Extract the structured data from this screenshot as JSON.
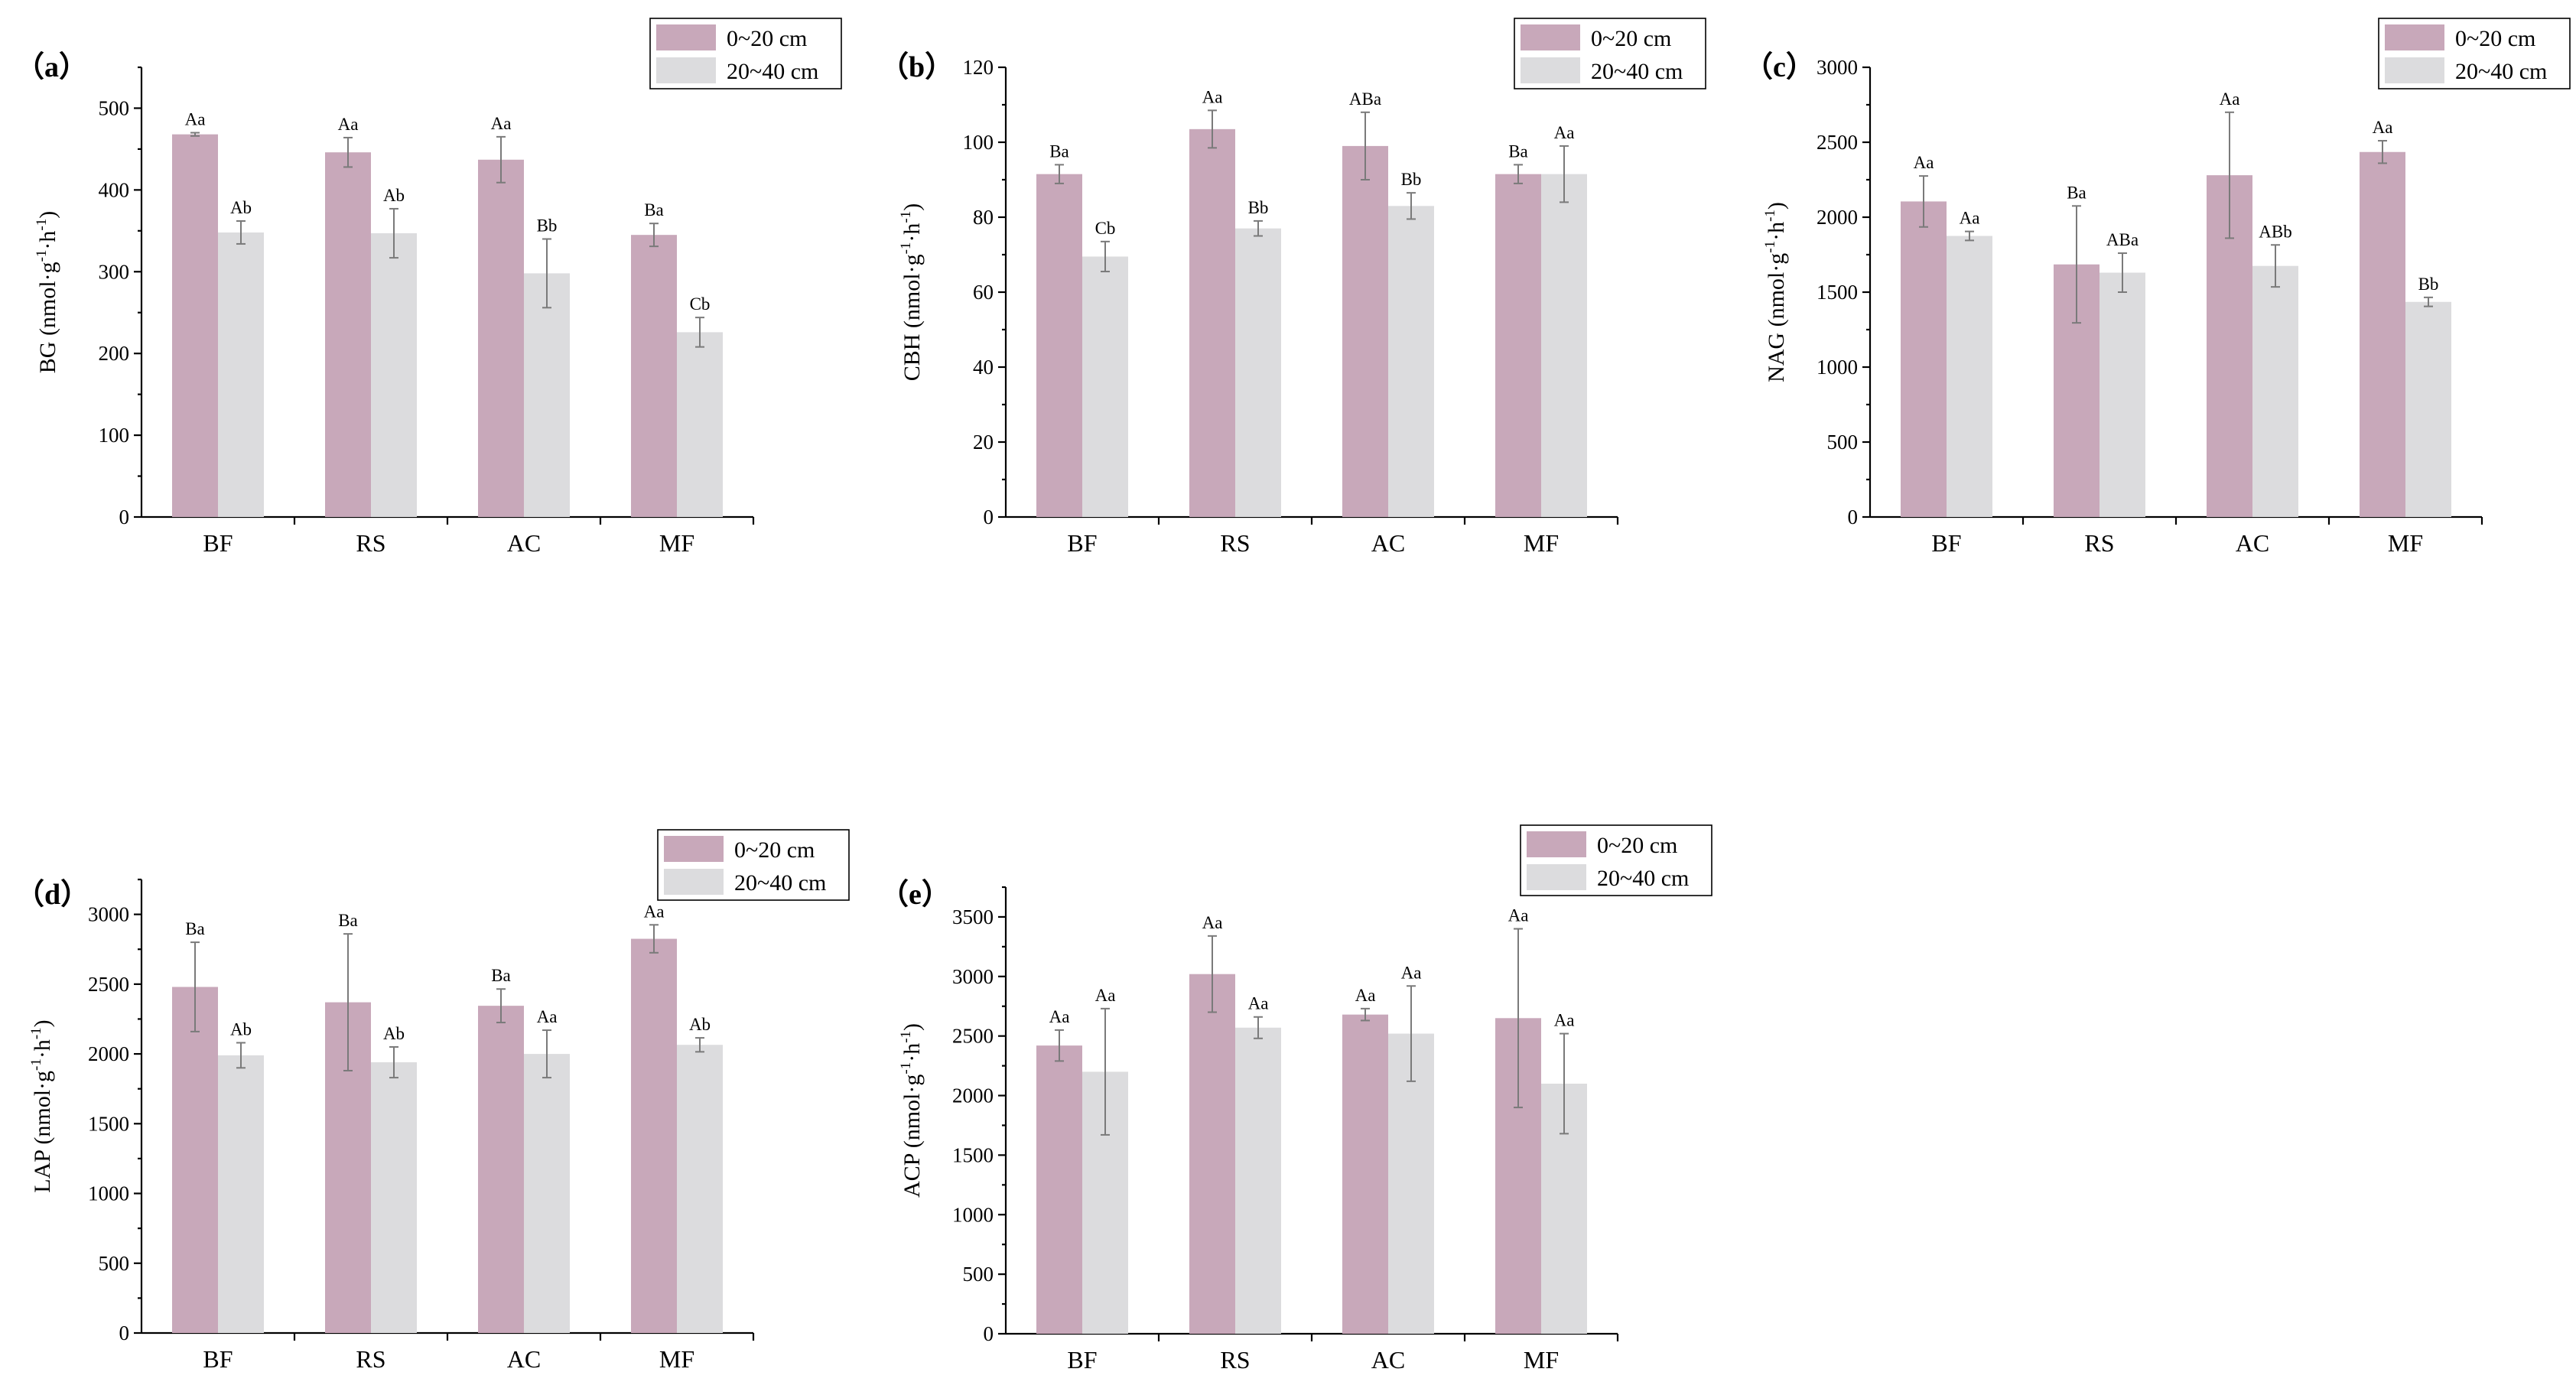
{
  "colors": {
    "series1": "#c8a8ba",
    "series2": "#dcdcde",
    "error_bar": "#7a7a7a"
  },
  "legend": [
    "0~20 cm",
    "20~40 cm"
  ],
  "chart_data": [
    {
      "id": "a",
      "type": "bar",
      "panel_label": "（a）",
      "ylabel": "BG (nmol·g-1·h-1)",
      "ylabel_main": "BG (nmol·g",
      "ylabel_tail": "·h",
      "ylabel_close": ")",
      "ylabel_sup": "-1",
      "categories": [
        "BF",
        "RS",
        "AC",
        "MF"
      ],
      "ylim": [
        0,
        550
      ],
      "ytick_values": [
        0,
        100,
        200,
        300,
        400,
        500
      ],
      "ytick_labels": [
        "0",
        "100",
        "200",
        "300",
        "400",
        "500"
      ],
      "series": [
        {
          "name": "0~20 cm",
          "values": [
            468,
            446,
            437,
            345
          ],
          "errors": [
            2,
            18,
            28,
            14
          ],
          "labels": [
            "Aa",
            "Aa",
            "Aa",
            "Ba"
          ]
        },
        {
          "name": "20~40 cm",
          "values": [
            348,
            347,
            298,
            226
          ],
          "errors": [
            14,
            30,
            42,
            18
          ],
          "labels": [
            "Ab",
            "Ab",
            "Bb",
            "Cb"
          ]
        }
      ]
    },
    {
      "id": "b",
      "type": "bar",
      "panel_label": "（b）",
      "ylabel": "CBH (nmol·g-1·h-1)",
      "ylabel_main": "CBH (nmol·g",
      "ylabel_tail": "·h",
      "ylabel_close": ")",
      "ylabel_sup": "-1",
      "categories": [
        "BF",
        "RS",
        "AC",
        "MF"
      ],
      "ylim": [
        0,
        120
      ],
      "ytick_values": [
        0,
        20,
        40,
        60,
        80,
        100,
        120
      ],
      "ytick_labels": [
        "0",
        "20",
        "40",
        "60",
        "80",
        "100",
        "120"
      ],
      "series": [
        {
          "name": "0~20 cm",
          "values": [
            91.5,
            103.5,
            99,
            91.5
          ],
          "errors": [
            2.5,
            5,
            9,
            2.5
          ],
          "labels": [
            "Ba",
            "Aa",
            "ABa",
            "Ba"
          ]
        },
        {
          "name": "20~40 cm",
          "values": [
            69.5,
            77,
            83,
            91.5
          ],
          "errors": [
            4,
            2,
            3.5,
            7.5
          ],
          "labels": [
            "Cb",
            "Bb",
            "Bb",
            "Aa"
          ]
        }
      ]
    },
    {
      "id": "c",
      "type": "bar",
      "panel_label": "（c）",
      "ylabel": "NAG (nmol·g-1·h-1)",
      "ylabel_main": "NAG (nmol·g",
      "ylabel_tail": "·h",
      "ylabel_close": ")",
      "ylabel_sup": "-1",
      "categories": [
        "BF",
        "RS",
        "AC",
        "MF"
      ],
      "ylim": [
        0,
        3000
      ],
      "ytick_values": [
        0,
        500,
        1000,
        1500,
        2000,
        2500,
        3000
      ],
      "ytick_labels": [
        "0",
        "500",
        "1000",
        "1500",
        "2000",
        "2500",
        "3000"
      ],
      "series": [
        {
          "name": "0~20 cm",
          "values": [
            2105,
            1685,
            2280,
            2435
          ],
          "errors": [
            170,
            390,
            420,
            75
          ],
          "labels": [
            "Aa",
            "Ba",
            "Aa",
            "Aa"
          ]
        },
        {
          "name": "20~40 cm",
          "values": [
            1875,
            1630,
            1675,
            1435
          ],
          "errors": [
            30,
            130,
            140,
            30
          ],
          "labels": [
            "Aa",
            "ABa",
            "ABb",
            "Bb"
          ]
        }
      ]
    },
    {
      "id": "d",
      "type": "bar",
      "panel_label": "（d）",
      "ylabel": "LAP (nmol·g-1·h-1)",
      "ylabel_main": "LAP (nmol·g",
      "ylabel_tail": "·h",
      "ylabel_close": ")",
      "ylabel_sup": "-1",
      "categories": [
        "BF",
        "RS",
        "AC",
        "MF"
      ],
      "ylim": [
        0,
        3250
      ],
      "ytick_values": [
        0,
        500,
        1000,
        1500,
        2000,
        2500,
        3000
      ],
      "ytick_labels": [
        "0",
        "500",
        "1000",
        "1500",
        "2000",
        "2500",
        "3000"
      ],
      "series": [
        {
          "name": "0~20 cm",
          "values": [
            2480,
            2370,
            2345,
            2825
          ],
          "errors": [
            320,
            490,
            120,
            100
          ],
          "labels": [
            "Ba",
            "Ba",
            "Ba",
            "Aa"
          ]
        },
        {
          "name": "20~40 cm",
          "values": [
            1990,
            1940,
            2000,
            2065
          ],
          "errors": [
            90,
            110,
            170,
            50
          ],
          "labels": [
            "Ab",
            "Ab",
            "Aa",
            "Ab"
          ]
        }
      ]
    },
    {
      "id": "e",
      "type": "bar",
      "panel_label": "（e）",
      "ylabel": "ACP (nmol·g-1·h-1)",
      "ylabel_main": "ACP (nmol·g",
      "ylabel_tail": "·h",
      "ylabel_close": ")",
      "ylabel_sup": "-1",
      "categories": [
        "BF",
        "RS",
        "AC",
        "MF"
      ],
      "ylim": [
        0,
        3750
      ],
      "ytick_values": [
        0,
        500,
        1000,
        1500,
        2000,
        2500,
        3000,
        3500
      ],
      "ytick_labels": [
        "0",
        "500",
        "1000",
        "1500",
        "2000",
        "2500",
        "3000",
        "3500"
      ],
      "series": [
        {
          "name": "0~20 cm",
          "values": [
            2420,
            3020,
            2680,
            2650
          ],
          "errors": [
            130,
            320,
            50,
            750
          ],
          "labels": [
            "Aa",
            "Aa",
            "Aa",
            "Aa"
          ]
        },
        {
          "name": "20~40 cm",
          "values": [
            2200,
            2570,
            2520,
            2100
          ],
          "errors": [
            530,
            90,
            400,
            420
          ],
          "labels": [
            "Aa",
            "Aa",
            "Aa",
            "Aa"
          ]
        }
      ]
    }
  ]
}
